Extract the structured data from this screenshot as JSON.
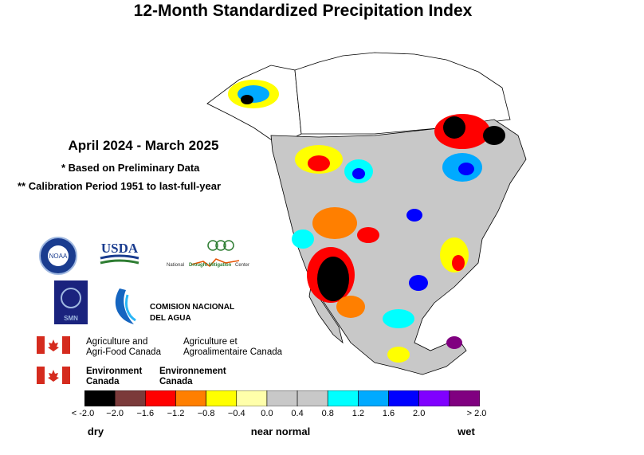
{
  "title": "12-Month Standardized Precipitation Index",
  "period": "April 2024 - March 2025",
  "notes": [
    "* Based on Preliminary Data",
    "** Calibration Period 1951 to last-full-year"
  ],
  "logos": {
    "noaa": "NOAA",
    "usda": "USDA",
    "ndmc_prefix": "National",
    "ndmc_mid": "Drought Mitigation",
    "ndmc_suffix": "Center",
    "smn": "SMN",
    "conagua_line1": "COMISION NACIONAL",
    "conagua_line2": "DEL AGUA"
  },
  "canada": {
    "aafc_en_1": "Agriculture and",
    "aafc_en_2": "Agri-Food Canada",
    "aafc_fr_1": "Agriculture et",
    "aafc_fr_2": "Agroalimentaire Canada",
    "ec_en_1": "Environment",
    "ec_en_2": "Canada",
    "ec_fr_1": "Environnement",
    "ec_fr_2": "Canada"
  },
  "legend": {
    "colors": [
      "#000000",
      "#7b3a3a",
      "#ff0000",
      "#ff7f00",
      "#ffff00",
      "#ffffaa",
      "#c8c8c8",
      "#c8c8c8",
      "#00ffff",
      "#00aaff",
      "#0000ff",
      "#8000ff",
      "#800080"
    ],
    "tick_labels": [
      "< -2.0",
      "−2.0",
      "−1.6",
      "−1.2",
      "−0.8",
      "−0.4",
      "0.0",
      "0.4",
      "0.8",
      "1.2",
      "1.6",
      "2.0",
      "> 2.0"
    ],
    "words": [
      "dry",
      "near normal",
      "wet"
    ]
  },
  "map_colors": {
    "land": "#c8c8c8",
    "no_data": "#ffffff",
    "outline": "#000000"
  }
}
